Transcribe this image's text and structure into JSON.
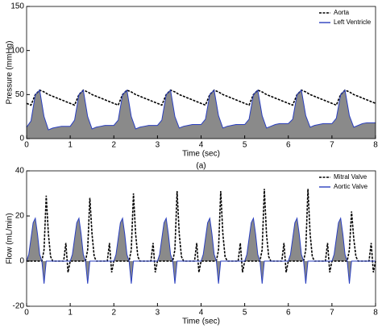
{
  "chart_data": [
    {
      "type": "line",
      "ylabel": "Pressure (mmHg)",
      "xlabel": "Time (sec)",
      "caption": "(a)",
      "xlim": [
        0,
        8
      ],
      "xticks": [
        0,
        1,
        2,
        3,
        4,
        5,
        6,
        7,
        8
      ],
      "ylim": [
        0,
        150
      ],
      "yticks": [
        0,
        50,
        100,
        150
      ],
      "grid": false,
      "legend": "upper right",
      "x": [
        0,
        0.1,
        0.2,
        0.3,
        0.4,
        0.5,
        0.6,
        0.7,
        0.8,
        0.9,
        1,
        1.1,
        1.2,
        1.3,
        1.4,
        1.5,
        1.6,
        1.7,
        1.8,
        1.9,
        2,
        2.1,
        2.2,
        2.3,
        2.4,
        2.5,
        2.6,
        2.7,
        2.8,
        2.9,
        3,
        3.1,
        3.2,
        3.3,
        3.4,
        3.5,
        3.6,
        3.7,
        3.8,
        3.9,
        4,
        4.1,
        4.2,
        4.3,
        4.4,
        4.5,
        4.6,
        4.7,
        4.8,
        4.9,
        5,
        5.1,
        5.2,
        5.3,
        5.4,
        5.5,
        5.6,
        5.7,
        5.8,
        5.9,
        6,
        6.1,
        6.2,
        6.3,
        6.4,
        6.5,
        6.6,
        6.7,
        6.8,
        6.9,
        7,
        7.1,
        7.2,
        7.3,
        7.4,
        7.5,
        7.6,
        7.7,
        7.8,
        7.9,
        8
      ],
      "series": [
        {
          "name": "Aorta",
          "color": "#000000",
          "style": "dashed",
          "fill": null,
          "values": [
            40,
            38,
            50,
            55,
            53,
            50,
            48,
            46,
            44,
            42,
            40,
            38,
            50,
            55,
            53,
            50,
            48,
            46,
            44,
            42,
            40,
            38,
            50,
            55,
            53,
            50,
            48,
            46,
            44,
            42,
            40,
            38,
            50,
            55,
            53,
            50,
            48,
            46,
            44,
            42,
            40,
            38,
            50,
            55,
            53,
            50,
            48,
            46,
            44,
            42,
            40,
            38,
            50,
            55,
            53,
            50,
            48,
            46,
            44,
            42,
            40,
            38,
            50,
            55,
            53,
            50,
            48,
            46,
            44,
            42,
            40,
            38,
            50,
            55,
            53,
            50,
            48,
            46,
            44,
            42,
            40
          ]
        },
        {
          "name": "Left Ventricle",
          "color": "#2a3fbf",
          "style": "solid",
          "fill": "#8a8a8a",
          "values": [
            13,
            20,
            50,
            55,
            25,
            10,
            12,
            13,
            14,
            14,
            14,
            21,
            50,
            55,
            25,
            11,
            13,
            14,
            15,
            15,
            15,
            21,
            50,
            55,
            25,
            11,
            13,
            14,
            15,
            15,
            15,
            21,
            50,
            55,
            25,
            12,
            14,
            15,
            16,
            16,
            16,
            22,
            50,
            55,
            26,
            12,
            14,
            15,
            16,
            16,
            16,
            22,
            50,
            55,
            26,
            12,
            14,
            16,
            17,
            17,
            17,
            22,
            50,
            55,
            26,
            13,
            15,
            16,
            17,
            17,
            17,
            23,
            50,
            55,
            26,
            13,
            15,
            17,
            18,
            18,
            18
          ]
        }
      ]
    },
    {
      "type": "line",
      "ylabel": "Flow (mL/min)",
      "xlabel": "Time (sec)",
      "caption": "(b)",
      "xlim": [
        0,
        8
      ],
      "xticks": [
        0,
        1,
        2,
        3,
        4,
        5,
        6,
        7,
        8
      ],
      "ylim": [
        -20,
        40
      ],
      "yticks": [
        -20,
        0,
        20,
        40
      ],
      "grid": false,
      "legend": "upper right",
      "x": [
        0,
        0.05,
        0.1,
        0.15,
        0.2,
        0.25,
        0.3,
        0.35,
        0.4,
        0.45,
        0.5,
        0.55,
        0.6,
        0.65,
        0.7,
        0.75,
        0.8,
        0.85,
        0.9,
        0.95,
        1,
        1.05,
        1.1,
        1.15,
        1.2,
        1.25,
        1.3,
        1.35,
        1.4,
        1.45,
        1.5,
        1.55,
        1.6,
        1.65,
        1.7,
        1.75,
        1.8,
        1.85,
        1.9,
        1.95,
        2,
        2.05,
        2.1,
        2.15,
        2.2,
        2.25,
        2.3,
        2.35,
        2.4,
        2.45,
        2.5,
        2.55,
        2.6,
        2.65,
        2.7,
        2.75,
        2.8,
        2.85,
        2.9,
        2.95,
        3,
        3.05,
        3.1,
        3.15,
        3.2,
        3.25,
        3.3,
        3.35,
        3.4,
        3.45,
        3.5,
        3.55,
        3.6,
        3.65,
        3.7,
        3.75,
        3.8,
        3.85,
        3.9,
        3.95,
        4,
        4.05,
        4.1,
        4.15,
        4.2,
        4.25,
        4.3,
        4.35,
        4.4,
        4.45,
        4.5,
        4.55,
        4.6,
        4.65,
        4.7,
        4.75,
        4.8,
        4.85,
        4.9,
        4.95,
        5,
        5.05,
        5.1,
        5.15,
        5.2,
        5.25,
        5.3,
        5.35,
        5.4,
        5.45,
        5.5,
        5.55,
        5.6,
        5.65,
        5.7,
        5.75,
        5.8,
        5.85,
        5.9,
        5.95,
        6,
        6.05,
        6.1,
        6.15,
        6.2,
        6.25,
        6.3,
        6.35,
        6.4,
        6.45,
        6.5,
        6.55,
        6.6,
        6.65,
        6.7,
        6.75,
        6.8,
        6.85,
        6.9,
        6.95,
        7,
        7.05,
        7.1,
        7.15,
        7.2,
        7.25,
        7.3,
        7.35,
        7.4,
        7.45,
        7.5,
        7.55,
        7.6,
        7.65,
        7.7,
        7.75,
        7.8,
        7.85,
        7.9,
        7.95,
        8
      ],
      "series": [
        {
          "name": "Mitral Valve",
          "color": "#000000",
          "style": "dashed",
          "fill": null,
          "values": [
            0,
            0,
            0,
            0,
            0,
            0,
            0,
            0,
            5,
            29,
            12,
            2,
            0,
            0,
            0,
            0,
            0,
            0,
            8,
            -5,
            0,
            0,
            0,
            0,
            0,
            0,
            0,
            0,
            5,
            28,
            12,
            2,
            0,
            0,
            0,
            0,
            0,
            0,
            8,
            -5,
            0,
            0,
            0,
            0,
            0,
            0,
            0,
            0,
            5,
            30,
            12,
            2,
            0,
            0,
            0,
            0,
            0,
            0,
            8,
            -5,
            0,
            0,
            0,
            0,
            0,
            0,
            0,
            0,
            5,
            31,
            12,
            2,
            0,
            0,
            0,
            0,
            0,
            0,
            8,
            -5,
            0,
            0,
            0,
            0,
            0,
            0,
            0,
            0,
            5,
            31,
            12,
            2,
            0,
            0,
            0,
            0,
            0,
            0,
            8,
            -5,
            0,
            0,
            0,
            0,
            0,
            0,
            0,
            0,
            5,
            32,
            12,
            2,
            0,
            0,
            0,
            0,
            0,
            0,
            8,
            -5,
            0,
            0,
            0,
            0,
            0,
            0,
            0,
            0,
            5,
            32,
            12,
            2,
            0,
            0,
            0,
            0,
            0,
            0,
            8,
            -5,
            0,
            0,
            0,
            0,
            0,
            0,
            0,
            0,
            5,
            22,
            10,
            2,
            0,
            0,
            0,
            0,
            0,
            0,
            8,
            -5,
            0
          ]
        },
        {
          "name": "Aortic Valve",
          "color": "#2a3fbf",
          "style": "solid",
          "fill": "#8a8a8a",
          "values": [
            0,
            3,
            10,
            17,
            19,
            12,
            3,
            0,
            -10,
            0,
            0,
            0,
            0,
            0,
            0,
            0,
            0,
            0,
            0,
            0,
            0,
            3,
            10,
            17,
            19,
            12,
            3,
            0,
            -10,
            0,
            0,
            0,
            0,
            0,
            0,
            0,
            0,
            0,
            0,
            0,
            0,
            3,
            10,
            17,
            19,
            12,
            3,
            0,
            -10,
            0,
            0,
            0,
            0,
            0,
            0,
            0,
            0,
            0,
            0,
            0,
            0,
            3,
            10,
            17,
            19,
            12,
            3,
            0,
            -10,
            0,
            0,
            0,
            0,
            0,
            0,
            0,
            0,
            0,
            0,
            0,
            0,
            3,
            10,
            17,
            19,
            12,
            3,
            0,
            -10,
            0,
            0,
            0,
            0,
            0,
            0,
            0,
            0,
            0,
            0,
            0,
            0,
            3,
            10,
            17,
            19,
            12,
            3,
            0,
            -10,
            0,
            0,
            0,
            0,
            0,
            0,
            0,
            0,
            0,
            0,
            0,
            0,
            3,
            10,
            17,
            19,
            12,
            3,
            0,
            -10,
            0,
            0,
            0,
            0,
            0,
            0,
            0,
            0,
            0,
            0,
            0,
            0,
            3,
            10,
            17,
            19,
            12,
            3,
            0,
            -10,
            0,
            0,
            0,
            0,
            0,
            0,
            0,
            0,
            0,
            0,
            0,
            0
          ]
        }
      ]
    }
  ]
}
